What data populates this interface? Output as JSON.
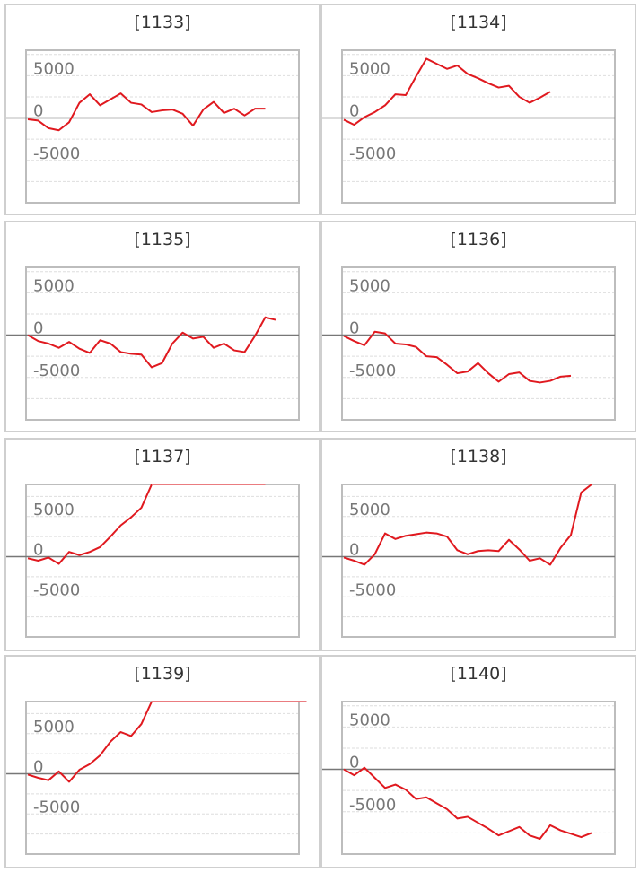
{
  "chart_data": [
    {
      "type": "line",
      "title": "[1133]",
      "ylim": [
        -10000,
        8000
      ],
      "yticks": [
        5000,
        0,
        -5000
      ],
      "tick_labels": [
        "5000",
        "0",
        "-5000"
      ],
      "grid": true,
      "color": "#e0191f",
      "values": [
        -150,
        -300,
        -1200,
        -1450,
        -500,
        1800,
        2800,
        1500,
        2200,
        2900,
        1800,
        1600,
        700,
        900,
        1000,
        500,
        -900,
        1000,
        1900,
        600,
        1100,
        300,
        1100,
        1100
      ]
    },
    {
      "type": "line",
      "title": "[1134]",
      "ylim": [
        -10000,
        8000
      ],
      "yticks": [
        5000,
        0,
        -5000
      ],
      "tick_labels": [
        "5000",
        "0",
        "-5000"
      ],
      "grid": true,
      "color": "#e0191f",
      "values": [
        -200,
        -800,
        100,
        700,
        1500,
        2800,
        2700,
        4900,
        7000,
        6400,
        5800,
        6200,
        5200,
        4700,
        4100,
        3600,
        3800,
        2500,
        1800,
        2400,
        3100
      ]
    },
    {
      "type": "line",
      "title": "[1135]",
      "ylim": [
        -10000,
        8000
      ],
      "yticks": [
        5000,
        0,
        -5000
      ],
      "tick_labels": [
        "5000",
        "0",
        "-5000"
      ],
      "grid": true,
      "color": "#e0191f",
      "values": [
        0,
        -700,
        -1000,
        -1500,
        -800,
        -1600,
        -2100,
        -600,
        -1000,
        -2000,
        -2200,
        -2300,
        -3800,
        -3300,
        -1000,
        300,
        -400,
        -200,
        -1500,
        -1000,
        -1800,
        -2000,
        -100,
        2100,
        1800
      ]
    },
    {
      "type": "line",
      "title": "[1136]",
      "ylim": [
        -10000,
        8000
      ],
      "yticks": [
        5000,
        0,
        -5000
      ],
      "tick_labels": [
        "5000",
        "0",
        "-5000"
      ],
      "grid": true,
      "color": "#e0191f",
      "values": [
        -100,
        -700,
        -1200,
        400,
        200,
        -1000,
        -1100,
        -1400,
        -2500,
        -2600,
        -3500,
        -4500,
        -4300,
        -3300,
        -4500,
        -5500,
        -4600,
        -4400,
        -5400,
        -5600,
        -5400,
        -4900,
        -4800
      ]
    },
    {
      "type": "line",
      "title": "[1137]",
      "ylim": [
        -10000,
        9000
      ],
      "yticks": [
        5000,
        0,
        -5000
      ],
      "tick_labels": [
        "5000",
        "0",
        "-5000"
      ],
      "grid": true,
      "color": "#e0191f",
      "flat_line_color": "#ea7c80",
      "values": [
        -200,
        -500,
        -100,
        -900,
        600,
        200,
        600,
        1200,
        2500,
        3900,
        4900,
        6100,
        9200,
        9200,
        9200,
        9200,
        9200,
        9200,
        9200,
        9200,
        9200,
        9200,
        9200,
        9200
      ]
    },
    {
      "type": "line",
      "title": "[1138]",
      "ylim": [
        -10000,
        9000
      ],
      "yticks": [
        5000,
        0,
        -5000
      ],
      "tick_labels": [
        "5000",
        "0",
        "-5000"
      ],
      "grid": true,
      "color": "#e0191f",
      "values": [
        -100,
        -500,
        -1000,
        300,
        2900,
        2200,
        2600,
        2800,
        3000,
        2900,
        2500,
        800,
        300,
        700,
        800,
        700,
        2100,
        900,
        -500,
        -200,
        -1000,
        1100,
        2700,
        8000,
        9000
      ]
    },
    {
      "type": "line",
      "title": "[1139]",
      "ylim": [
        -10000,
        9000
      ],
      "yticks": [
        5000,
        0,
        -5000
      ],
      "tick_labels": [
        "5000",
        "0",
        "-5000"
      ],
      "grid": true,
      "color": "#e0191f",
      "flat_line_color": "#ea7c80",
      "values": [
        -100,
        -500,
        -800,
        300,
        -1000,
        500,
        1200,
        2300,
        4000,
        5200,
        4700,
        6200,
        9000,
        9000,
        9000,
        9000,
        9000,
        9000,
        9000,
        9000,
        9000,
        9000,
        9000,
        9000,
        9000,
        9000,
        9000,
        9000
      ]
    },
    {
      "type": "line",
      "title": "[1140]",
      "ylim": [
        -10000,
        8000
      ],
      "yticks": [
        5000,
        0,
        -5000
      ],
      "tick_labels": [
        "5000",
        "0",
        "-5000"
      ],
      "grid": true,
      "color": "#e0191f",
      "values": [
        0,
        -700,
        200,
        -1000,
        -2200,
        -1800,
        -2400,
        -3500,
        -3300,
        -4000,
        -4700,
        -5800,
        -5600,
        -6300,
        -7000,
        -7800,
        -7300,
        -6800,
        -7800,
        -8200,
        -6600,
        -7200,
        -7600,
        -8000,
        -7500
      ]
    }
  ]
}
